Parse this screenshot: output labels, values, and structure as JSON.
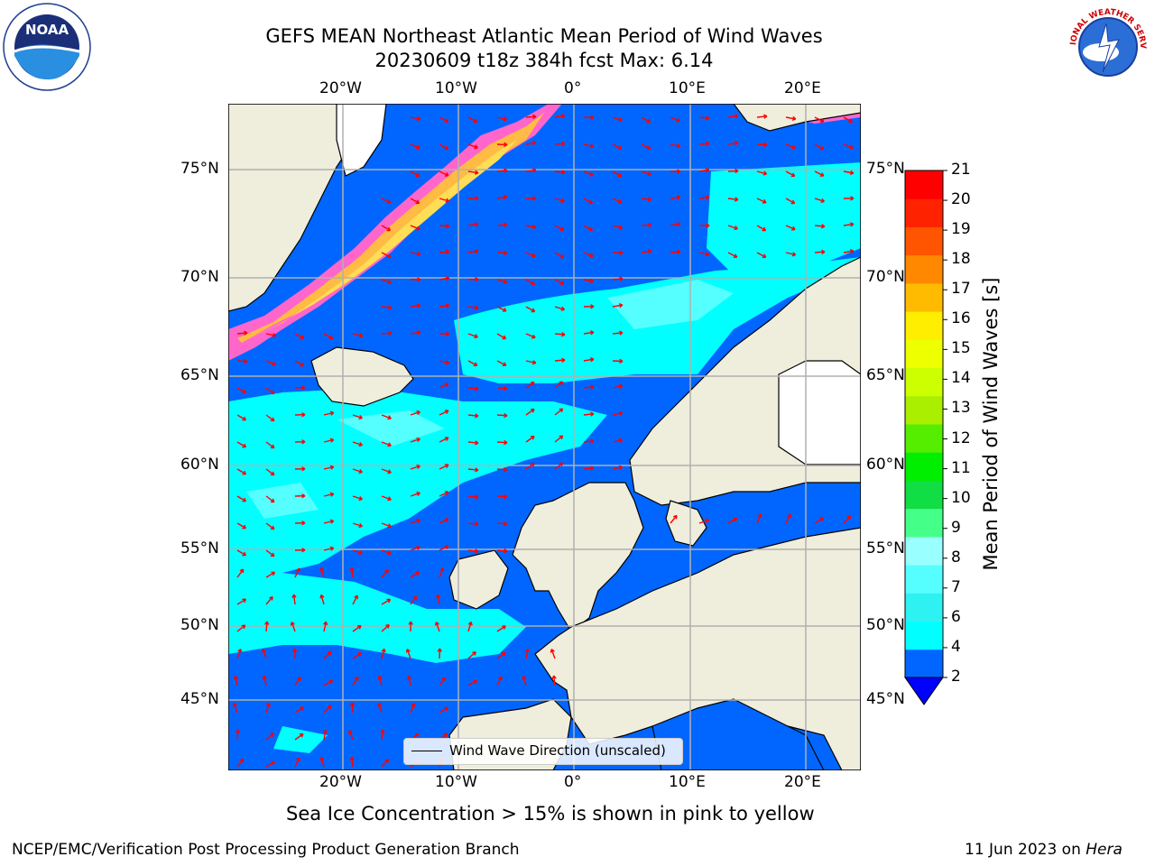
{
  "title_line1": "GEFS MEAN Northeast Atlantic Mean Period of Wind Waves",
  "title_line2": "20230609 t18z 384h fcst   Max: 6.14",
  "logos": {
    "left": "NOAA",
    "right": "NATIONAL WEATHER SERVICE"
  },
  "lon_ticks": [
    "20°W",
    "10°W",
    "0°",
    "10°E",
    "20°E"
  ],
  "lat_ticks": [
    "75°N",
    "70°N",
    "65°N",
    "60°N",
    "55°N",
    "50°N",
    "45°N"
  ],
  "colorbar": {
    "title": "Mean Period of Wind Waves [s]",
    "levels": [
      "2",
      "4",
      "6",
      "7",
      "8",
      "9",
      "10",
      "11",
      "12",
      "13",
      "14",
      "15",
      "16",
      "17",
      "18",
      "19",
      "20",
      "21"
    ],
    "colors": [
      "#0066ff",
      "#00ffff",
      "#2ef2f2",
      "#55ffff",
      "#99ffff",
      "#44ff88",
      "#11dd44",
      "#00ee00",
      "#55ee00",
      "#aaee00",
      "#ccff00",
      "#eeff00",
      "#ffee00",
      "#ffbb00",
      "#ff8800",
      "#ff5500",
      "#ff2200",
      "#ff0000"
    ],
    "under_color": "#0000ff"
  },
  "legend": "Wind Wave Direction (unscaled)",
  "ice_note": "Sea Ice Concentration > 15% is shown in pink to yellow",
  "footer_left": "NCEP/EMC/Verification Post Processing Product Generation Branch",
  "footer_right_date": "11 Jun 2023 on",
  "footer_right_host": "Hera",
  "map_colors": {
    "land": "#efeddc",
    "ocean_low": "#0066ff",
    "ocean_mid": "#00ffff",
    "arrow": "#ff0000",
    "grid": "#b0b0b0"
  }
}
